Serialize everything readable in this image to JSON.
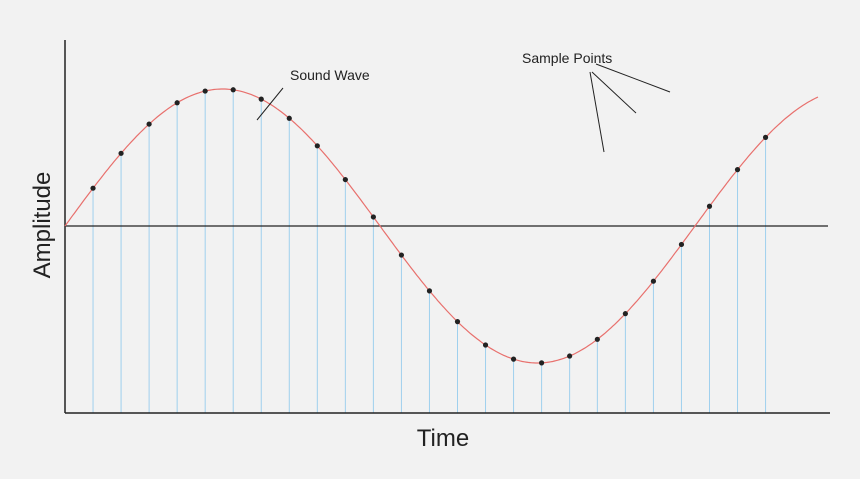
{
  "labels": {
    "x_axis": "Time",
    "y_axis": "Amplitude",
    "wave": "Sound Wave",
    "samples": "Sample Points"
  },
  "colors": {
    "background": "#f2f2f2",
    "wave": "#e8706d",
    "stem": "#9fd0ee",
    "axis": "#222222",
    "point": "#222222"
  },
  "chart_data": {
    "type": "scatter",
    "title": "",
    "xlabel": "Time",
    "ylabel": "Amplitude",
    "wave": {
      "amplitude": 1,
      "cycles_shown": 1.2,
      "phase_start": 0
    },
    "ylim": [
      -1.0,
      1.0
    ],
    "xlim": [
      0,
      1.2
    ],
    "sample_t": [
      0.0445,
      0.089,
      0.1335,
      0.178,
      0.2225,
      0.267,
      0.3115,
      0.356,
      0.4005,
      0.445,
      0.4895,
      0.534,
      0.5785,
      0.623,
      0.6675,
      0.712,
      0.7565,
      0.801,
      0.845,
      0.8895,
      0.934,
      0.9785,
      1.023,
      1.0675,
      1.112
    ]
  }
}
